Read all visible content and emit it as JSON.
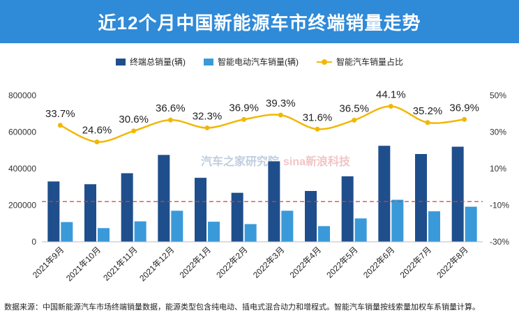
{
  "header": {
    "title": "近12个月中国新能源车市终端销量走势"
  },
  "legend": {
    "total_label": "终端总销量(辆)",
    "smart_label": "智能电动汽车销量(辆)",
    "share_label": "智能汽车销量占比"
  },
  "colors": {
    "banner": "#2f8ad8",
    "total": "#1f4e8c",
    "smart": "#3a9ad9",
    "share": "#f2b705",
    "refline": "#e03a3a"
  },
  "watermarks": {
    "autohome": "汽车之家研究院",
    "sina": "sina新浪科技"
  },
  "footnote": "数据来源：中国新能源汽车市场终端销量数据，能源类型包含纯电动、插电式混合动力和增程式。智能汽车销量按线索量加权车系销量计算。",
  "chart_data": {
    "type": "bar",
    "categories": [
      "2021年9月",
      "2021年10月",
      "2021年11月",
      "2021年12月",
      "2022年1月",
      "2022年2月",
      "2022年3月",
      "2022年4月",
      "2022年5月",
      "2022年6月",
      "2022年7月",
      "2022年8月"
    ],
    "series": [
      {
        "name": "终端总销量(辆)",
        "type": "bar",
        "axis": "left",
        "values": [
          330000,
          315000,
          375000,
          475000,
          350000,
          268000,
          440000,
          278000,
          358000,
          525000,
          480000,
          520000
        ]
      },
      {
        "name": "智能电动汽车销量(辆)",
        "type": "bar",
        "axis": "left",
        "values": [
          108000,
          75000,
          112000,
          170000,
          110000,
          97000,
          170000,
          86000,
          128000,
          230000,
          167000,
          192000
        ]
      },
      {
        "name": "智能汽车销量占比",
        "type": "line",
        "axis": "right",
        "values": [
          33.7,
          24.6,
          30.6,
          36.6,
          32.3,
          36.9,
          39.3,
          31.6,
          36.5,
          44.1,
          35.2,
          36.9
        ],
        "labels": [
          "33.7%",
          "24.6%",
          "30.6%",
          "36.6%",
          "32.3%",
          "36.9%",
          "39.3%",
          "31.6%",
          "36.5%",
          "44.1%",
          "35.2%",
          "36.9%"
        ]
      }
    ],
    "y_left": {
      "min": 0,
      "max": 800000,
      "ticks": [
        0,
        200000,
        400000,
        600000,
        800000
      ],
      "tick_labels": [
        "0",
        "200000",
        "400000",
        "600000",
        "800000"
      ]
    },
    "y_right": {
      "min": -30,
      "max": 50,
      "ticks": [
        -30,
        -10,
        10,
        30,
        50
      ],
      "tick_labels": [
        "-30%",
        "-10%",
        "10%",
        "30%",
        "50%"
      ]
    },
    "reference_line": {
      "axis": "left",
      "value": 220000,
      "style": "dashed"
    },
    "grid": false
  }
}
